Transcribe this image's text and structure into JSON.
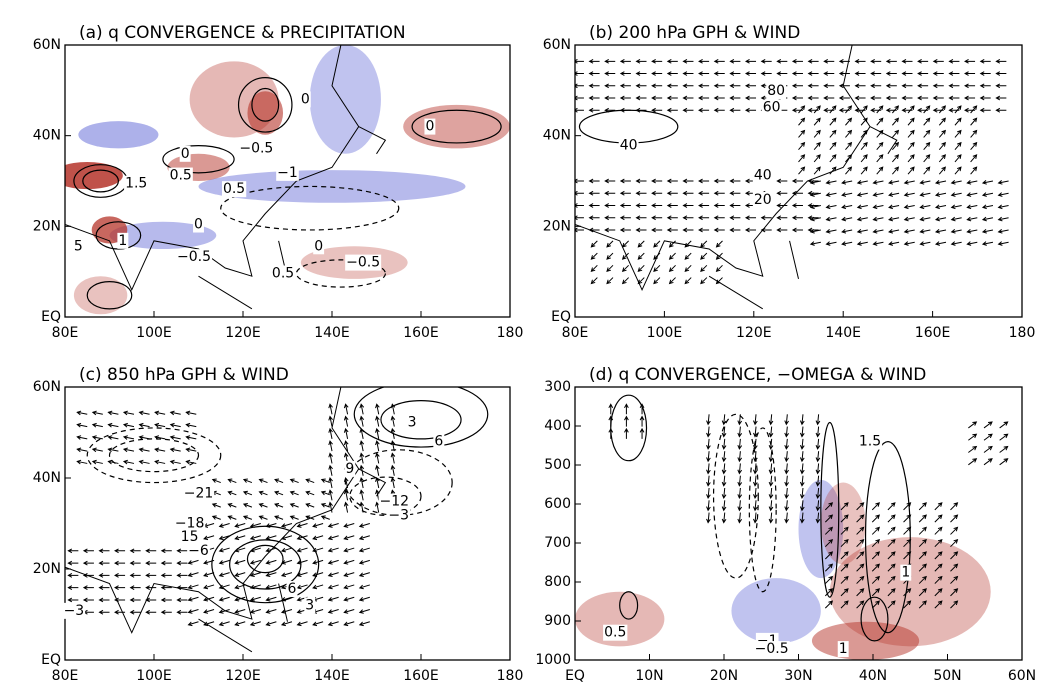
{
  "panels": [
    {
      "title": "(a) q CONVERGENCE & PRECIPITATION",
      "xticks": [
        "80E",
        "100E",
        "120E",
        "140E",
        "160E",
        "180"
      ],
      "yticks": [
        "EQ",
        "20N",
        "40N",
        "60N"
      ],
      "contour_labels": [
        "0",
        "−0.5",
        "0",
        "0.5",
        "0.5",
        "−1",
        "1.5",
        "0",
        "5",
        "1",
        "−0.5",
        "0",
        "−0.5",
        "0.5",
        "0"
      ]
    },
    {
      "title": "(b) 200 hPa GPH & WIND",
      "xticks": [
        "80E",
        "100E",
        "120E",
        "140E",
        "160E",
        "180"
      ],
      "yticks": [
        "EQ",
        "20N",
        "40N",
        "60N"
      ],
      "contour_labels": [
        "80",
        "60",
        "40",
        "40",
        "20"
      ]
    },
    {
      "title": "(c) 850 hPa GPH & WIND",
      "xticks": [
        "80E",
        "100E",
        "120E",
        "140E",
        "160E",
        "180"
      ],
      "yticks": [
        "EQ",
        "20N",
        "40N",
        "60N"
      ],
      "contour_labels": [
        "3",
        "6",
        "9",
        "−21",
        "−12",
        "−18",
        "−3",
        "15",
        "−6",
        "6",
        "3",
        "−3"
      ]
    },
    {
      "title": "(d) q CONVERGENCE, −OMEGA & WIND",
      "xticks": [
        "EQ",
        "10N",
        "20N",
        "30N",
        "40N",
        "50N",
        "60N"
      ],
      "yticks": [
        "1000",
        "900",
        "800",
        "700",
        "600",
        "500",
        "400",
        "300"
      ],
      "contour_labels": [
        "1.5",
        "1",
        "0.5",
        "−1",
        "−0.5",
        "1"
      ]
    }
  ]
}
